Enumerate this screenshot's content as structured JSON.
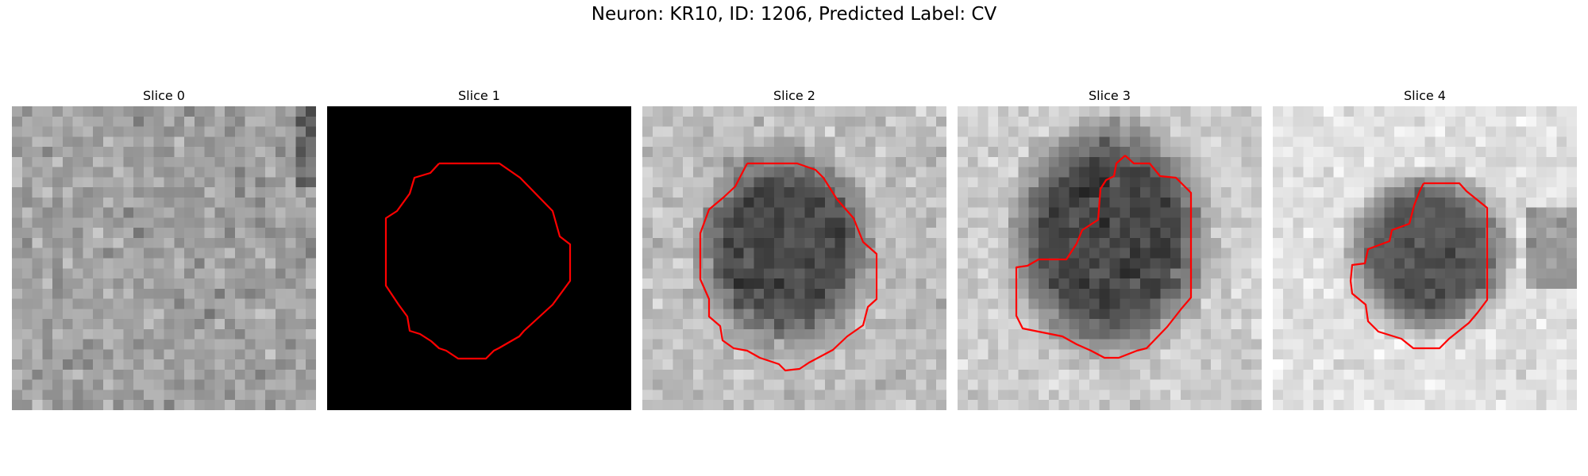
{
  "figure": {
    "title": "Neuron: KR10, ID: 1206, Predicted Label: CV"
  },
  "panels": [
    {
      "title": "Slice 0",
      "image": "noise-texture-grayscale",
      "contour": false
    },
    {
      "title": "Slice 1",
      "image": "solid-black",
      "contour": true
    },
    {
      "title": "Slice 2",
      "image": "grayscale-with-dark-blob",
      "contour": true
    },
    {
      "title": "Slice 3",
      "image": "grayscale-with-dark-blob",
      "contour": true
    },
    {
      "title": "Slice 4",
      "image": "grayscale-with-dark-blob",
      "contour": true
    }
  ],
  "colors": {
    "contour": "#ff0000",
    "background": "#ffffff"
  }
}
